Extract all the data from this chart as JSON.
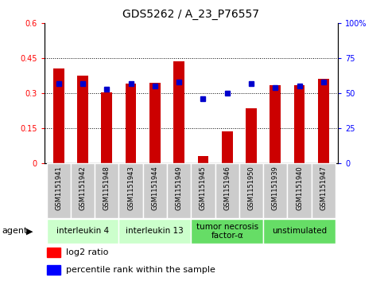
{
  "title": "GDS5262 / A_23_P76557",
  "samples": [
    "GSM1151941",
    "GSM1151942",
    "GSM1151948",
    "GSM1151943",
    "GSM1151944",
    "GSM1151949",
    "GSM1151945",
    "GSM1151946",
    "GSM1151950",
    "GSM1151939",
    "GSM1151940",
    "GSM1151947"
  ],
  "log2_ratio": [
    0.405,
    0.375,
    0.305,
    0.34,
    0.345,
    0.435,
    0.03,
    0.135,
    0.235,
    0.335,
    0.335,
    0.36
  ],
  "percentile": [
    57,
    57,
    53,
    57,
    55,
    58,
    46,
    50,
    57,
    54,
    55,
    58
  ],
  "agents": [
    {
      "label": "interleukin 4",
      "indices": [
        0,
        1,
        2
      ],
      "color": "#ccffcc"
    },
    {
      "label": "interleukin 13",
      "indices": [
        3,
        4,
        5
      ],
      "color": "#ccffcc"
    },
    {
      "label": "tumor necrosis\nfactor-α",
      "indices": [
        6,
        7,
        8
      ],
      "color": "#66dd66"
    },
    {
      "label": "unstimulated",
      "indices": [
        9,
        10,
        11
      ],
      "color": "#66dd66"
    }
  ],
  "ylim_left": [
    0,
    0.6
  ],
  "ylim_right": [
    0,
    100
  ],
  "yticks_left": [
    0,
    0.15,
    0.3,
    0.45,
    0.6
  ],
  "yticks_right": [
    0,
    25,
    50,
    75,
    100
  ],
  "bar_color": "#cc0000",
  "dot_color": "#0000cc",
  "bar_width": 0.45,
  "sample_bg_color": "#cccccc",
  "plot_bg": "#ffffff",
  "grid_color": "#000000",
  "agent_label_fontsize": 8,
  "tick_fontsize": 7,
  "title_fontsize": 10
}
